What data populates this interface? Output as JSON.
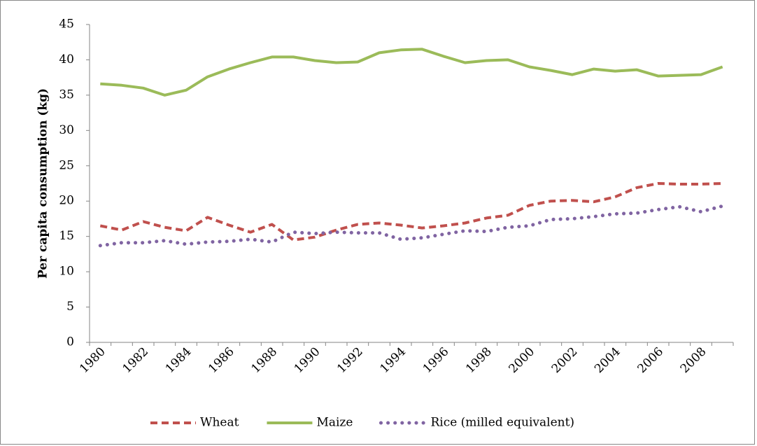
{
  "chart_data": {
    "type": "line",
    "y_label": "Per capita consumption (kg)",
    "categories": [
      "1980",
      null,
      "1982",
      null,
      "1984",
      null,
      "1986",
      null,
      "1988",
      null,
      "1990",
      null,
      "1992",
      null,
      "1994",
      null,
      "1996",
      null,
      "1998",
      null,
      "2000",
      null,
      "2002",
      null,
      "2004",
      null,
      "2006",
      null,
      "2008",
      null
    ],
    "series": [
      {
        "name": "Wheat",
        "color": "#c0504d",
        "dash": "dashed",
        "values": [
          16.5,
          15.9,
          17.1,
          16.3,
          15.8,
          17.7,
          16.6,
          15.6,
          16.7,
          14.5,
          14.9,
          15.9,
          16.7,
          16.9,
          16.6,
          16.2,
          16.5,
          16.9,
          17.6,
          18.0,
          19.4,
          20.0,
          20.1,
          19.9,
          20.6,
          21.9,
          22.5,
          22.4,
          22.4,
          22.5
        ]
      },
      {
        "name": "Maize",
        "color": "#9bbb59",
        "dash": "solid",
        "values": [
          36.6,
          36.4,
          36.0,
          35.0,
          35.7,
          37.6,
          38.7,
          39.6,
          40.4,
          40.4,
          39.9,
          39.6,
          39.7,
          41.0,
          41.4,
          41.5,
          40.5,
          39.6,
          39.9,
          40.0,
          39.0,
          38.5,
          37.9,
          38.7,
          38.4,
          38.6,
          37.7,
          37.8,
          37.9,
          39.0
        ]
      },
      {
        "name": "Rice (milled equivalent)",
        "color": "#8064a2",
        "dash": "dotted",
        "values": [
          13.7,
          14.1,
          14.1,
          14.4,
          13.9,
          14.2,
          14.3,
          14.6,
          14.2,
          15.6,
          15.4,
          15.6,
          15.5,
          15.5,
          14.6,
          14.8,
          15.3,
          15.8,
          15.7,
          16.3,
          16.5,
          17.4,
          17.5,
          17.8,
          18.2,
          18.3,
          18.8,
          19.2,
          18.5,
          19.3
        ]
      }
    ],
    "ylim": [
      0,
      45
    ],
    "yticks": [
      0,
      5,
      10,
      15,
      20,
      25,
      30,
      35,
      40,
      45
    ],
    "grid": false,
    "legend": "bottom"
  }
}
